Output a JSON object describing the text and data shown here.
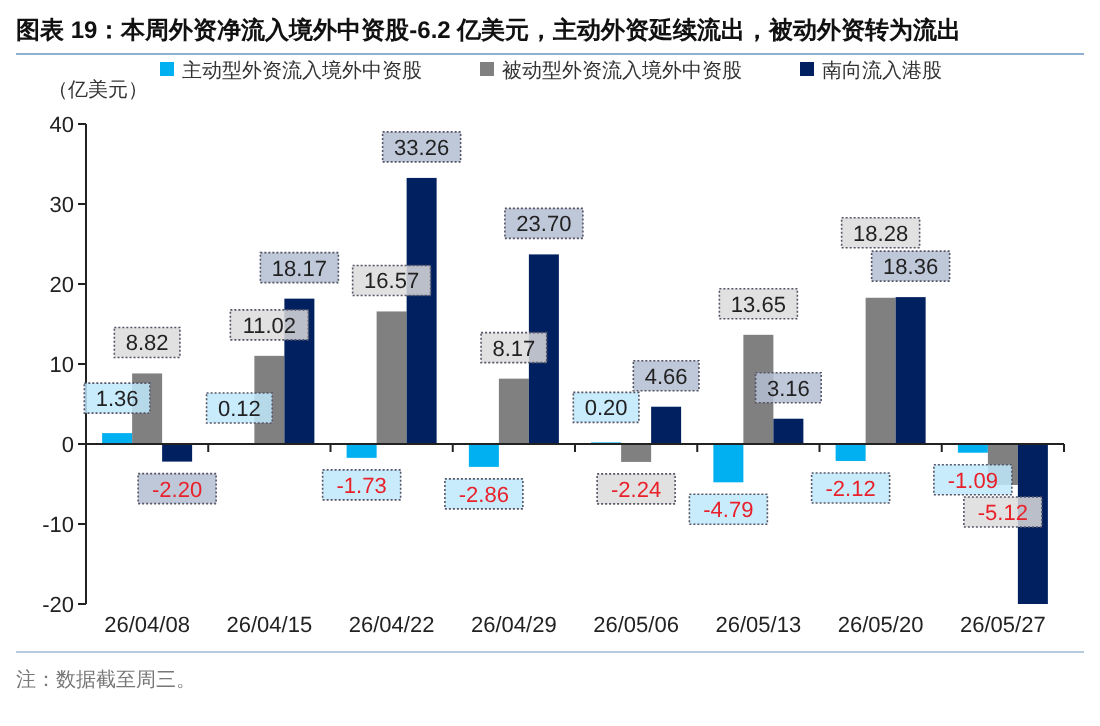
{
  "chart_data": {
    "type": "bar",
    "title": "图表 19：本周外资净流入境外中资股-6.2 亿美元，主动外资延续流出，被动外资转为流出",
    "ylabel": "（亿美元）",
    "categories": [
      "26/04/08",
      "26/04/15",
      "26/04/22",
      "26/04/29",
      "26/05/06",
      "26/05/13",
      "26/05/20",
      "26/05/27"
    ],
    "series": [
      {
        "name": "主动型外资流入境外中资股",
        "color": "#00b0f0",
        "values": [
          1.36,
          0.12,
          -1.73,
          -2.86,
          0.2,
          -4.79,
          -2.12,
          -1.09
        ],
        "value_labels": [
          "1.36",
          "0.12",
          "-1.73",
          "-2.86",
          "0.20",
          "-4.79",
          "-2.12",
          "-1.09"
        ]
      },
      {
        "name": "被动型外资流入境外中资股",
        "color": "#808080",
        "values": [
          8.82,
          11.02,
          16.57,
          8.17,
          -2.24,
          13.65,
          18.28,
          -5.12
        ],
        "value_labels": [
          "8.82",
          "11.02",
          "16.57",
          "8.17",
          "-2.24",
          "13.65",
          "18.28",
          "-5.12"
        ]
      },
      {
        "name": "南向流入港股",
        "color": "#002060",
        "values": [
          -2.2,
          18.17,
          33.26,
          23.7,
          4.66,
          3.16,
          18.36,
          -20
        ],
        "value_labels": [
          "-2.20",
          "18.17",
          "33.26",
          "23.70",
          "4.66",
          "3.16",
          "18.36",
          null
        ]
      }
    ],
    "ylim": [
      -20,
      40
    ],
    "yticks": [
      -20,
      -10,
      0,
      10,
      20,
      30,
      40
    ],
    "legend": "top",
    "annotations": [
      "注：数据截至周三。"
    ]
  }
}
